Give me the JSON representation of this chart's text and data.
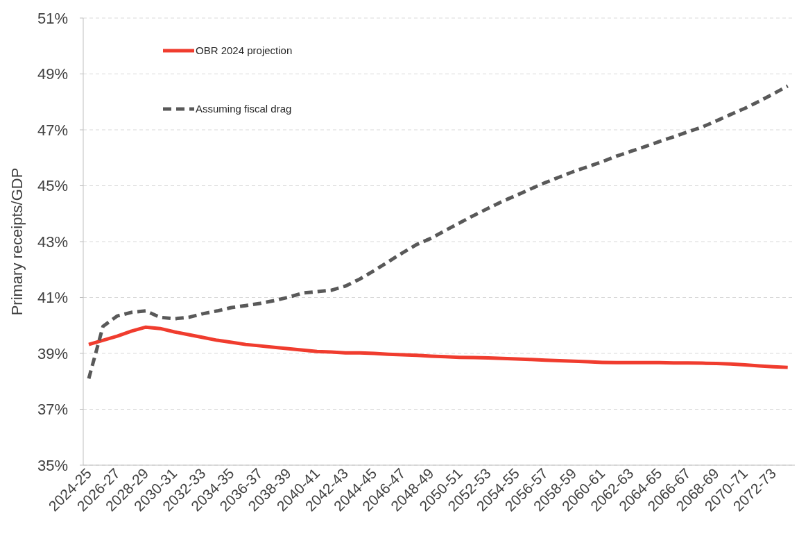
{
  "chart_data": {
    "type": "line",
    "ylabel": "Primary receipts/GDP",
    "categories": [
      "2024-25",
      null,
      "2026-27",
      null,
      "2028-29",
      null,
      "2030-31",
      null,
      "2032-33",
      null,
      "2034-35",
      null,
      "2036-37",
      null,
      "2038-39",
      null,
      "2040-41",
      null,
      "2042-43",
      null,
      "2044-45",
      null,
      "2046-47",
      null,
      "2048-49",
      null,
      "2050-51",
      null,
      "2052-53",
      null,
      "2054-55",
      null,
      "2056-57",
      null,
      "2058-59",
      null,
      "2060-61",
      null,
      "2062-63",
      null,
      "2064-65",
      null,
      "2066-67",
      null,
      "2068-69",
      null,
      "2070-71",
      null,
      "2072-73",
      null
    ],
    "ylim": [
      35,
      51
    ],
    "yticks": [
      {
        "value": 35,
        "label": "35%"
      },
      {
        "value": 37,
        "label": "37%"
      },
      {
        "value": 39,
        "label": "39%"
      },
      {
        "value": 41,
        "label": "41%"
      },
      {
        "value": 43,
        "label": "43%"
      },
      {
        "value": 45,
        "label": "45%"
      },
      {
        "value": 47,
        "label": "47%"
      },
      {
        "value": 49,
        "label": "49%"
      },
      {
        "value": 51,
        "label": "51%"
      }
    ],
    "grid": "y",
    "legend": "top left",
    "marker": "none",
    "series": [
      {
        "name": "OBR 2024 projection",
        "color": "#f03c2e",
        "line_style": "solid",
        "values": [
          39.32,
          39.47,
          39.62,
          39.8,
          39.94,
          39.89,
          39.77,
          39.67,
          39.57,
          39.47,
          39.4,
          39.32,
          39.27,
          39.22,
          39.17,
          39.12,
          39.07,
          39.05,
          39.02,
          39.02,
          39.0,
          38.97,
          38.95,
          38.93,
          38.9,
          38.88,
          38.86,
          38.85,
          38.84,
          38.82,
          38.8,
          38.78,
          38.76,
          38.74,
          38.72,
          38.7,
          38.68,
          38.67,
          38.67,
          38.67,
          38.67,
          38.66,
          38.66,
          38.65,
          38.64,
          38.62,
          38.59,
          38.55,
          38.52,
          38.5
        ]
      },
      {
        "name": "Assuming fiscal drag",
        "color": "#595959",
        "line_style": "dashed",
        "values": [
          38.1,
          39.97,
          40.34,
          40.47,
          40.52,
          40.29,
          40.24,
          40.29,
          40.42,
          40.52,
          40.64,
          40.71,
          40.79,
          40.89,
          41.01,
          41.16,
          41.21,
          41.26,
          41.41,
          41.66,
          41.96,
          42.28,
          42.6,
          42.9,
          43.12,
          43.4,
          43.67,
          43.94,
          44.19,
          44.44,
          44.66,
          44.89,
          45.11,
          45.31,
          45.51,
          45.68,
          45.86,
          46.06,
          46.23,
          46.4,
          46.58,
          46.75,
          46.93,
          47.1,
          47.32,
          47.55,
          47.77,
          48.02,
          48.29,
          48.57
        ]
      }
    ]
  }
}
